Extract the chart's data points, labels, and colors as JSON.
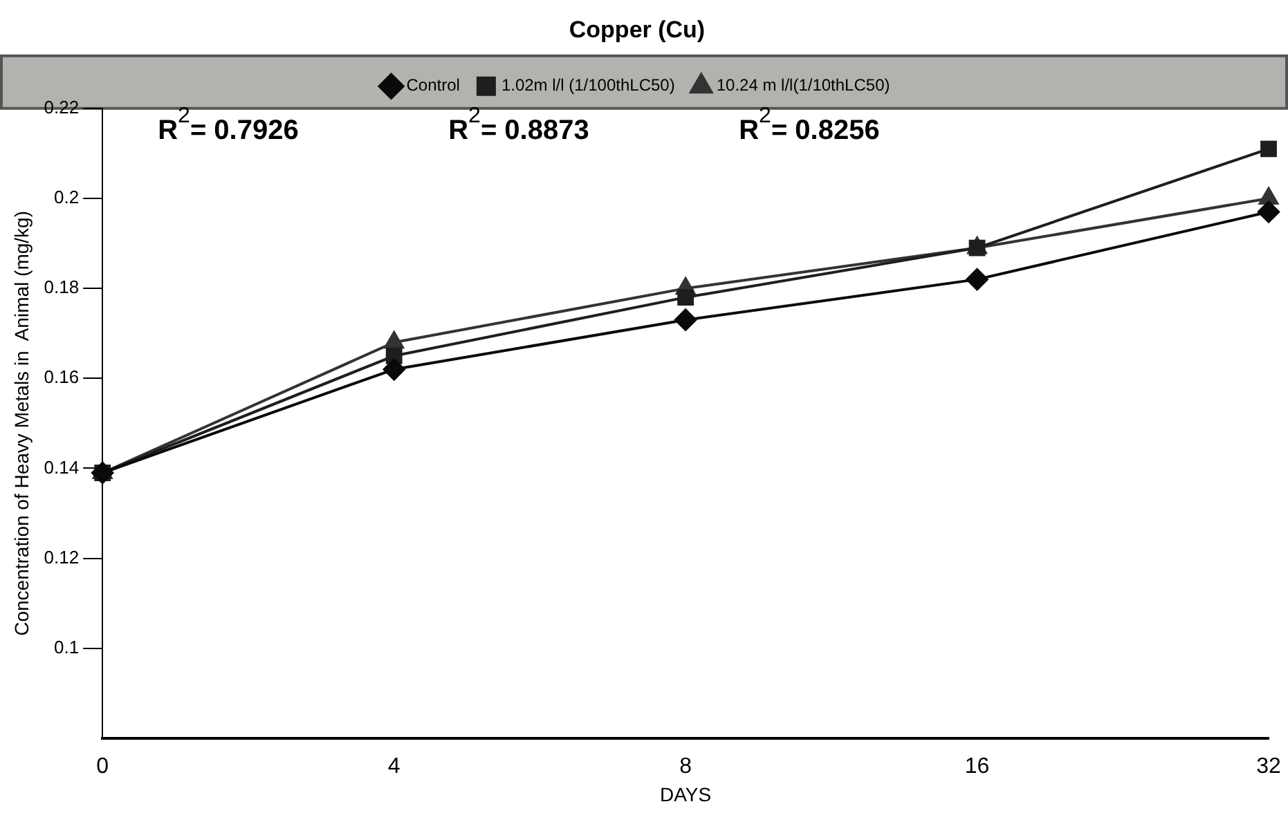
{
  "chart_data": {
    "type": "line",
    "title": "Copper (Cu)",
    "xlabel": "DAYS",
    "ylabel": "Concentration of Heavy Metals in  Animal (mg/kg)",
    "categories": [
      "0",
      "4",
      "8",
      "16",
      "32"
    ],
    "series": [
      {
        "name": "Control",
        "color": "#0a0a0a",
        "marker": "diamond",
        "values": [
          0.139,
          0.162,
          0.173,
          0.182,
          0.197
        ]
      },
      {
        "name": "1.02m l/l (1/100thLC50)",
        "color": "#1e1e1e",
        "marker": "square",
        "values": [
          0.139,
          0.165,
          0.178,
          0.189,
          0.211
        ]
      },
      {
        "name": "10.24 m l/l(1/10thLC50)",
        "color": "#333333",
        "marker": "triangle",
        "values": [
          0.139,
          0.168,
          0.18,
          0.189,
          0.2
        ]
      }
    ],
    "ylim": [
      0.08,
      0.22
    ],
    "yticks": [
      0.1,
      0.12,
      0.14,
      0.16,
      0.18,
      0.2,
      0.22
    ],
    "annotations": [
      "R$^{2}$= 0.7926",
      "R$^{2}$= 0.8873",
      "R$^{2}$= 0.8256"
    ],
    "grid": false,
    "legend": "top",
    "line_style": "solid"
  }
}
